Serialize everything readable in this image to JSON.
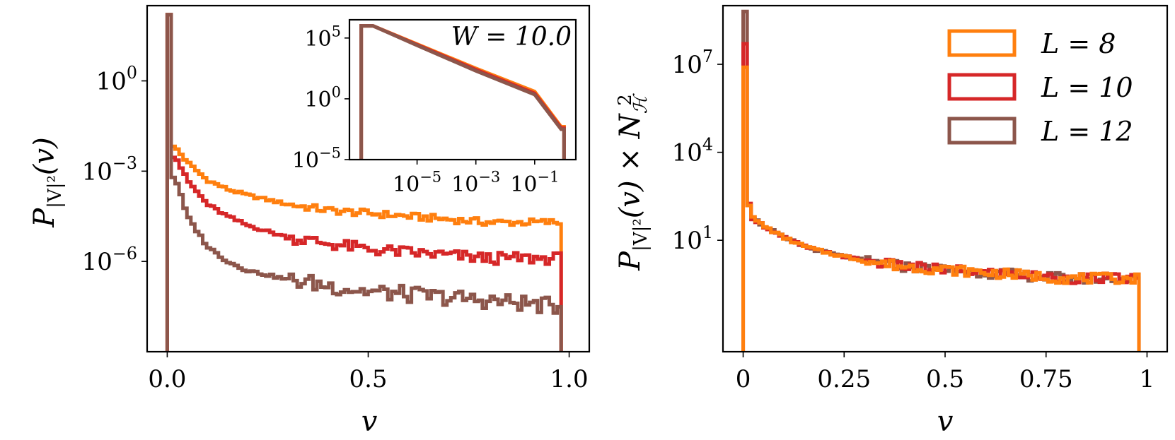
{
  "chart_data": [
    {
      "type": "line",
      "drawstyle": "steps",
      "xlabel": "v",
      "ylabel": "P_{|V|²}(v)",
      "ylabel_parts": {
        "main": "P",
        "sub": "|V|²",
        "arg": "(v)"
      },
      "xlim": [
        -0.05,
        1.05
      ],
      "ylim_log10": [
        -9,
        2.5
      ],
      "yscale": "log",
      "xticks": [
        0.0,
        0.5,
        1.0
      ],
      "xtick_labels": [
        "0.0",
        "0.5",
        "1.0"
      ],
      "yticks_log10": [
        0,
        -3,
        -6
      ],
      "ytick_labels": [
        "10^0",
        "10^-3",
        "10^-6"
      ],
      "ytick_label_parts": [
        [
          "10",
          "0"
        ],
        [
          "10",
          "−3"
        ],
        [
          "10",
          "−6"
        ]
      ],
      "x": [
        0.0,
        0.02,
        0.05,
        0.1,
        0.15,
        0.2,
        0.3,
        0.4,
        0.5,
        0.6,
        0.7,
        0.8,
        0.9,
        0.96,
        0.98
      ],
      "series": [
        {
          "name": "L = 8",
          "color": "#ff7f0e",
          "spike_log10": 2.2,
          "y_log10": [
            2.2,
            -2.2,
            -2.7,
            -3.3,
            -3.6,
            -3.8,
            -4.1,
            -4.3,
            -4.4,
            -4.5,
            -4.6,
            -4.7,
            -4.7,
            -4.7,
            -9
          ]
        },
        {
          "name": "L = 10",
          "color": "#d62728",
          "spike_log10": 2.2,
          "y_log10": [
            2.2,
            -2.5,
            -3.3,
            -4.1,
            -4.5,
            -4.8,
            -5.2,
            -5.4,
            -5.6,
            -5.7,
            -5.8,
            -5.9,
            -5.9,
            -5.9,
            -9
          ]
        },
        {
          "name": "L = 12",
          "color": "#8c564b",
          "spike_log10": 2.2,
          "y_log10": [
            2.2,
            -3.2,
            -4.5,
            -5.5,
            -6.0,
            -6.3,
            -6.6,
            -6.8,
            -7.0,
            -7.1,
            -7.2,
            -7.3,
            -7.4,
            -7.5,
            -9
          ]
        }
      ],
      "inset": {
        "annotation": "W = 10.0",
        "xscale": "log",
        "yscale": "log",
        "xlim_log10": [
          -7.3,
          0.4
        ],
        "ylim_log10": [
          -5,
          6.5
        ],
        "xticks_log10": [
          -5,
          -3,
          -1
        ],
        "xtick_label_parts": [
          [
            "10",
            "−5"
          ],
          [
            "10",
            "−3"
          ],
          [
            "10",
            "−1"
          ]
        ],
        "yticks_log10": [
          5,
          0,
          -5
        ],
        "ytick_label_parts": [
          [
            "10",
            "5"
          ],
          [
            "10",
            "0"
          ],
          [
            "10",
            "−5"
          ]
        ],
        "x_log10": [
          -6.9,
          -6.5,
          -5,
          -3,
          -1,
          -0.1,
          0.0
        ],
        "series_y_log10": {
          "L = 8": [
            6.0,
            6.0,
            4.5,
            2.5,
            0.6,
            -2.3,
            -2.3
          ],
          "L = 10": [
            6.0,
            6.0,
            4.45,
            2.4,
            0.45,
            -2.4,
            -2.4
          ],
          "L = 12": [
            6.0,
            6.0,
            4.4,
            2.3,
            0.35,
            -2.5,
            -2.5
          ]
        }
      }
    },
    {
      "type": "line",
      "drawstyle": "steps",
      "xlabel": "v",
      "ylabel": "P_{|V|²}(v) × N_H²",
      "ylabel_parts": {
        "main": "P",
        "sub": "|V|²",
        "arg": "(v) × N",
        "sub2": "ℋ",
        "sup2": "2"
      },
      "xlim": [
        -0.05,
        1.05
      ],
      "ylim_log10": [
        -2.8,
        9.0
      ],
      "yscale": "log",
      "xticks": [
        0,
        0.25,
        0.5,
        0.75,
        1
      ],
      "xtick_labels": [
        "0",
        "0.25",
        "0.5",
        "0.75",
        "1"
      ],
      "yticks_log10": [
        7,
        4,
        1
      ],
      "ytick_label_parts": [
        [
          "10",
          "7"
        ],
        [
          "10",
          "4"
        ],
        [
          "10",
          "1"
        ]
      ],
      "x": [
        0.0,
        0.01,
        0.02,
        0.05,
        0.1,
        0.15,
        0.2,
        0.3,
        0.4,
        0.5,
        0.6,
        0.7,
        0.8,
        0.9,
        0.96,
        0.98
      ],
      "series": [
        {
          "name": "L = 12",
          "color": "#8c564b",
          "spike_log10": 8.8,
          "y_log10": [
            8.8,
            2.6,
            1.8,
            1.5,
            1.1,
            0.8,
            0.6,
            0.3,
            0.1,
            0.0,
            -0.1,
            -0.2,
            -0.3,
            -0.3,
            -0.3,
            -2.8
          ]
        },
        {
          "name": "L = 10",
          "color": "#d62728",
          "spike_log10": 7.7,
          "y_log10": [
            7.7,
            2.6,
            1.8,
            1.5,
            1.1,
            0.8,
            0.6,
            0.3,
            0.1,
            0.0,
            -0.1,
            -0.2,
            -0.3,
            -0.3,
            -0.3,
            -2.8
          ]
        },
        {
          "name": "L = 8",
          "color": "#ff7f0e",
          "spike_log10": 6.9,
          "y_log10": [
            6.9,
            2.6,
            1.8,
            1.5,
            1.1,
            0.8,
            0.6,
            0.3,
            0.1,
            0.0,
            -0.1,
            -0.2,
            -0.3,
            -0.3,
            -0.3,
            -2.8
          ]
        }
      ],
      "legend": {
        "placement": "upper right",
        "entries": [
          {
            "label": "L = 8",
            "color": "#ff7f0e"
          },
          {
            "label": "L = 10",
            "color": "#d62728"
          },
          {
            "label": "L = 12",
            "color": "#8c564b"
          }
        ]
      }
    }
  ]
}
